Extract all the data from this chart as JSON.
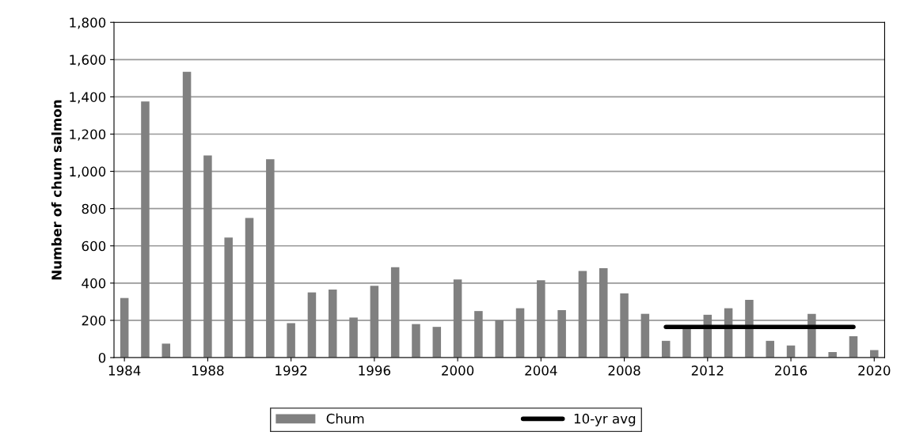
{
  "chart_data": {
    "type": "bar",
    "ylabel": "Number of chum salmon",
    "x": [
      1984,
      1985,
      1986,
      1987,
      1988,
      1989,
      1990,
      1991,
      1992,
      1993,
      1994,
      1995,
      1996,
      1997,
      1998,
      1999,
      2000,
      2001,
      2002,
      2003,
      2004,
      2005,
      2006,
      2007,
      2008,
      2009,
      2010,
      2011,
      2012,
      2013,
      2014,
      2015,
      2016,
      2017,
      2018,
      2019,
      2020
    ],
    "series": [
      {
        "name": "Chum",
        "color": "#808080",
        "values": [
          320,
          1375,
          75,
          1535,
          1085,
          645,
          750,
          1065,
          185,
          350,
          365,
          215,
          385,
          485,
          180,
          165,
          420,
          250,
          200,
          265,
          415,
          255,
          465,
          480,
          345,
          235,
          90,
          165,
          230,
          265,
          310,
          90,
          65,
          235,
          30,
          115,
          40
        ]
      },
      {
        "name": "10-yr avg",
        "type": "line",
        "color": "#000000",
        "x": [
          2010,
          2019
        ],
        "values": [
          165,
          165
        ]
      }
    ],
    "xlim": [
      1983.5,
      2020.5
    ],
    "xticks": [
      1984,
      1988,
      1992,
      1996,
      2000,
      2004,
      2008,
      2012,
      2016,
      2020
    ],
    "ylim": [
      0,
      1800
    ],
    "yticks": [
      {
        "value": 0,
        "label": "0"
      },
      {
        "value": 200,
        "label": "200"
      },
      {
        "value": 400,
        "label": "400"
      },
      {
        "value": 600,
        "label": "600"
      },
      {
        "value": 800,
        "label": "800"
      },
      {
        "value": 1000,
        "label": "1,000"
      },
      {
        "value": 1200,
        "label": "1,200"
      },
      {
        "value": 1400,
        "label": "1,400"
      },
      {
        "value": 1600,
        "label": "1,600"
      },
      {
        "value": 1800,
        "label": "1,800"
      }
    ],
    "grid": "y",
    "legend": "bottom"
  }
}
